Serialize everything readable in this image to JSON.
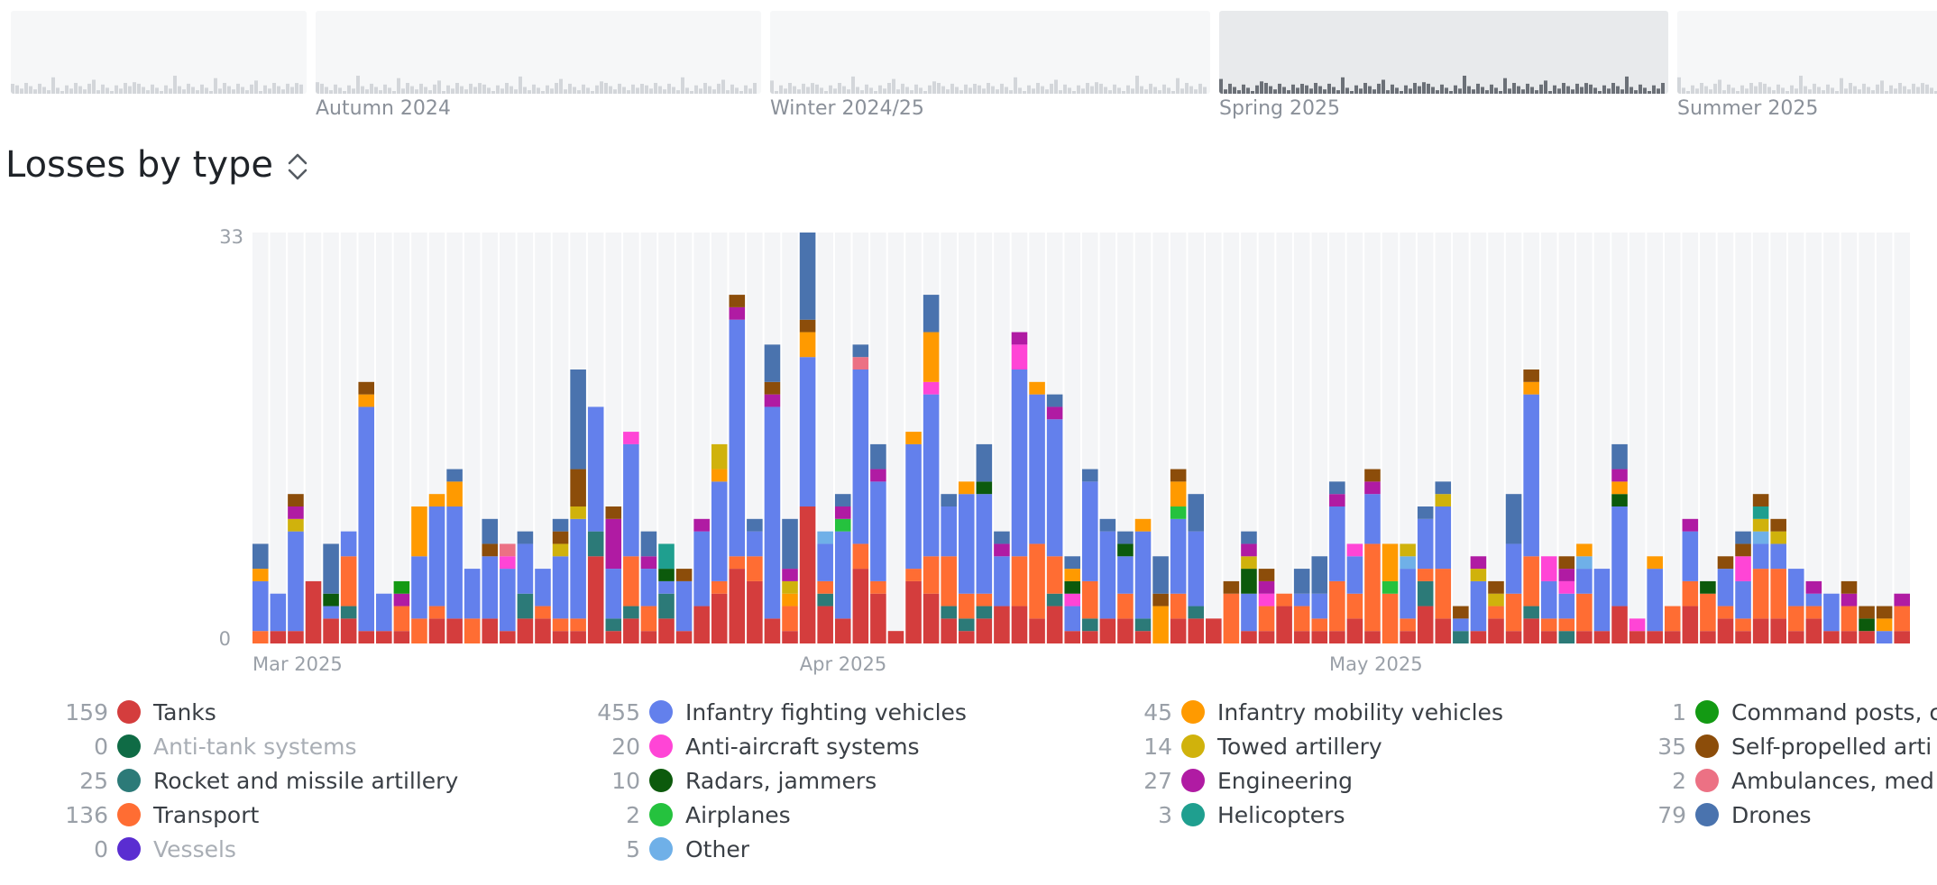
{
  "timeline": {
    "seasons": [
      {
        "label": "",
        "active": false
      },
      {
        "label": "Autumn 2024",
        "active": false
      },
      {
        "label": "Winter 2024/25",
        "active": false
      },
      {
        "label": "Spring 2025",
        "active": true
      },
      {
        "label": "Summer 2025",
        "active": false
      }
    ],
    "spark_color": "#d3d6da",
    "spark_active_color": "#6b7077"
  },
  "header": {
    "title": "Losses by type",
    "toggle_icon": "updown-chevron-icon"
  },
  "chart_data": {
    "type": "bar",
    "stacked": true,
    "ylim": [
      0,
      33
    ],
    "y_ticks": [
      "0",
      "33"
    ],
    "x_tick_labels": [
      {
        "label": "Mar 2025",
        "index": 0
      },
      {
        "label": "Apr 2025",
        "index": 31
      },
      {
        "label": "May 2025",
        "index": 61
      }
    ],
    "series": [
      {
        "name": "Tanks",
        "color": "#d43d3d",
        "total": "159"
      },
      {
        "name": "Anti-tank systems",
        "color": "#0f6b45",
        "total": "0"
      },
      {
        "name": "Rocket and missile artillery",
        "color": "#2c7a78",
        "total": "25"
      },
      {
        "name": "Transport",
        "color": "#ff6d33",
        "total": "136"
      },
      {
        "name": "Vessels",
        "color": "#5a2dd1",
        "total": "0"
      },
      {
        "name": "Infantry fighting vehicles",
        "color": "#6380ec",
        "total": "455"
      },
      {
        "name": "Anti-aircraft systems",
        "color": "#ff45d6",
        "total": "20"
      },
      {
        "name": "Radars, jammers",
        "color": "#0c5a0c",
        "total": "10"
      },
      {
        "name": "Airplanes",
        "color": "#25c23e",
        "total": "2"
      },
      {
        "name": "Other",
        "color": "#6fb0e8",
        "total": "5"
      },
      {
        "name": "Infantry mobility vehicles",
        "color": "#ff9a00",
        "total": "45"
      },
      {
        "name": "Towed artillery",
        "color": "#d0b20c",
        "total": "14"
      },
      {
        "name": "Engineering",
        "color": "#b01ba3",
        "total": "27"
      },
      {
        "name": "Helicopters",
        "color": "#1f9f8f",
        "total": "3"
      },
      {
        "name": "Command posts, c",
        "color": "#139a13",
        "total": "1"
      },
      {
        "name": "Self-propelled arti",
        "color": "#8c4d0a",
        "total": "35"
      },
      {
        "name": "Ambulances, med",
        "color": "#ec7184",
        "total": "2"
      },
      {
        "name": "Drones",
        "color": "#4a73ae",
        "total": "79"
      }
    ],
    "days": [
      {
        "Tanks": 0,
        "Infantry fighting vehicles": 4,
        "Infantry mobility vehicles": 1,
        "Transport": 1,
        "Drones": 2
      },
      {
        "Tanks": 1,
        "Infantry fighting vehicles": 3
      },
      {
        "Tanks": 1,
        "Infantry fighting vehicles": 8,
        "Towed artillery": 1,
        "Self-propelled arti": 1,
        "Engineering": 1
      },
      {
        "Tanks": 5,
        "Infantry fighting vehicles": 0
      },
      {
        "Tanks": 2,
        "Infantry fighting vehicles": 1,
        "Radars, jammers": 1,
        "Drones": 4
      },
      {
        "Tanks": 2,
        "Infantry fighting vehicles": 2,
        "Rocket and missile artillery": 1,
        "Transport": 4
      },
      {
        "Tanks": 1,
        "Infantry fighting vehicles": 18,
        "Infantry mobility vehicles": 1,
        "Self-propelled arti": 1
      },
      {
        "Tanks": 1,
        "Infantry fighting vehicles": 3
      },
      {
        "Tanks": 1,
        "Command posts, c": 1,
        "Engineering": 1,
        "Transport": 2
      },
      {
        "Tanks": 0,
        "Infantry fighting vehicles": 5,
        "Infantry mobility vehicles": 4,
        "Transport": 2
      },
      {
        "Tanks": 2,
        "Infantry fighting vehicles": 8,
        "Infantry mobility vehicles": 1,
        "Transport": 1
      },
      {
        "Tanks": 2,
        "Infantry fighting vehicles": 9,
        "Infantry mobility vehicles": 2,
        "Drones": 1
      },
      {
        "Tanks": 0,
        "Infantry fighting vehicles": 4,
        "Transport": 2
      },
      {
        "Tanks": 2,
        "Infantry fighting vehicles": 5,
        "Self-propelled arti": 1,
        "Drones": 2
      },
      {
        "Tanks": 1,
        "Infantry fighting vehicles": 5,
        "Anti-aircraft systems": 1,
        "Ambulances, med": 1
      },
      {
        "Tanks": 2,
        "Infantry fighting vehicles": 4,
        "Rocket and missile artillery": 2,
        "Drones": 1
      },
      {
        "Tanks": 2,
        "Infantry fighting vehicles": 3,
        "Transport": 1
      },
      {
        "Tanks": 1,
        "Infantry fighting vehicles": 5,
        "Towed artillery": 1,
        "Self-propelled arti": 1,
        "Transport": 1,
        "Drones": 1
      },
      {
        "Tanks": 1,
        "Infantry fighting vehicles": 8,
        "Towed artillery": 1,
        "Self-propelled arti": 3,
        "Transport": 1,
        "Drones": 8
      },
      {
        "Tanks": 7,
        "Infantry fighting vehicles": 10,
        "Rocket and missile artillery": 2
      },
      {
        "Tanks": 1,
        "Infantry fighting vehicles": 4,
        "Self-propelled arti": 1,
        "Rocket and missile artillery": 1,
        "Engineering": 4
      },
      {
        "Tanks": 2,
        "Infantry fighting vehicles": 9,
        "Anti-aircraft systems": 1,
        "Rocket and missile artillery": 1,
        "Transport": 4
      },
      {
        "Tanks": 1,
        "Infantry fighting vehicles": 3,
        "Engineering": 1,
        "Transport": 2,
        "Drones": 2
      },
      {
        "Tanks": 2,
        "Infantry fighting vehicles": 1,
        "Rocket and missile artillery": 2,
        "Radars, jammers": 1,
        "Helicopters": 2
      },
      {
        "Tanks": 1,
        "Infantry fighting vehicles": 4,
        "Self-propelled arti": 1
      },
      {
        "Tanks": 3,
        "Infantry fighting vehicles": 6,
        "Engineering": 1
      },
      {
        "Tanks": 4,
        "Infantry fighting vehicles": 8,
        "Towed artillery": 2,
        "Infantry mobility vehicles": 1,
        "Transport": 1
      },
      {
        "Tanks": 6,
        "Infantry fighting vehicles": 19,
        "Self-propelled arti": 1,
        "Engineering": 1,
        "Transport": 1
      },
      {
        "Tanks": 5,
        "Infantry fighting vehicles": 2,
        "Transport": 2,
        "Drones": 1
      },
      {
        "Tanks": 2,
        "Infantry fighting vehicles": 17,
        "Self-propelled arti": 1,
        "Engineering": 1,
        "Drones": 3
      },
      {
        "Tanks": 1,
        "Infantry fighting vehicles": 0,
        "Towed artillery": 1,
        "Infantry mobility vehicles": 1,
        "Transport": 2,
        "Engineering": 1,
        "Drones": 4
      },
      {
        "Tanks": 11,
        "Infantry fighting vehicles": 12,
        "Infantry mobility vehicles": 2,
        "Self-propelled arti": 1,
        "Drones": 7
      },
      {
        "Tanks": 3,
        "Infantry fighting vehicles": 3,
        "Rocket and missile artillery": 1,
        "Transport": 1,
        "Other": 1
      },
      {
        "Tanks": 2,
        "Infantry fighting vehicles": 7,
        "Engineering": 1,
        "Airplanes": 1,
        "Drones": 1
      },
      {
        "Tanks": 6,
        "Infantry fighting vehicles": 14,
        "Ambulances, med": 1,
        "Transport": 2,
        "Drones": 1
      },
      {
        "Tanks": 4,
        "Infantry fighting vehicles": 8,
        "Engineering": 1,
        "Transport": 1,
        "Drones": 2
      },
      {
        "Tanks": 1
      },
      {
        "Tanks": 5,
        "Infantry fighting vehicles": 10,
        "Infantry mobility vehicles": 1,
        "Transport": 1
      },
      {
        "Tanks": 4,
        "Infantry fighting vehicles": 13,
        "Infantry mobility vehicles": 4,
        "Anti-aircraft systems": 1,
        "Transport": 3,
        "Drones": 3
      },
      {
        "Tanks": 2,
        "Infantry fighting vehicles": 4,
        "Rocket and missile artillery": 1,
        "Transport": 4,
        "Drones": 1
      },
      {
        "Tanks": 1,
        "Infantry fighting vehicles": 8,
        "Infantry mobility vehicles": 1,
        "Rocket and missile artillery": 1,
        "Transport": 2
      },
      {
        "Tanks": 2,
        "Infantry fighting vehicles": 8,
        "Rocket and missile artillery": 1,
        "Radars, jammers": 1,
        "Transport": 1,
        "Drones": 3
      },
      {
        "Tanks": 3,
        "Infantry fighting vehicles": 4,
        "Engineering": 1,
        "Drones": 1
      },
      {
        "Tanks": 3,
        "Infantry fighting vehicles": 15,
        "Anti-aircraft systems": 2,
        "Engineering": 1,
        "Transport": 4
      },
      {
        "Tanks": 2,
        "Infantry fighting vehicles": 12,
        "Infantry mobility vehicles": 1,
        "Transport": 6
      },
      {
        "Tanks": 3,
        "Infantry fighting vehicles": 11,
        "Engineering": 1,
        "Rocket and missile artillery": 1,
        "Transport": 3,
        "Drones": 1
      },
      {
        "Tanks": 1,
        "Infantry fighting vehicles": 2,
        "Infantry mobility vehicles": 1,
        "Radars, jammers": 1,
        "Anti-aircraft systems": 1,
        "Drones": 1
      },
      {
        "Tanks": 1,
        "Infantry fighting vehicles": 8,
        "Rocket and missile artillery": 1,
        "Transport": 3,
        "Drones": 1
      },
      {
        "Tanks": 2,
        "Infantry fighting vehicles": 7,
        "Drones": 1
      },
      {
        "Tanks": 2,
        "Infantry fighting vehicles": 3,
        "Radars, jammers": 1,
        "Transport": 2,
        "Drones": 1
      },
      {
        "Tanks": 1,
        "Infantry fighting vehicles": 7,
        "Infantry mobility vehicles": 1,
        "Rocket and missile artillery": 1
      },
      {
        "Tanks": 0,
        "Infantry fighting vehicles": 0,
        "Infantry mobility vehicles": 3,
        "Self-propelled arti": 1,
        "Drones": 3
      },
      {
        "Tanks": 2,
        "Infantry fighting vehicles": 6,
        "Infantry mobility vehicles": 2,
        "Self-propelled arti": 1,
        "Airplanes": 1,
        "Transport": 2
      },
      {
        "Tanks": 2,
        "Infantry fighting vehicles": 6,
        "Rocket and missile artillery": 1,
        "Drones": 3
      },
      {
        "Tanks": 2,
        "Infantry fighting vehicles": 0
      },
      {
        "Self-propelled arti": 1,
        "Transport": 4
      },
      {
        "Tanks": 1,
        "Infantry fighting vehicles": 3,
        "Towed artillery": 1,
        "Radars, jammers": 2,
        "Engineering": 1,
        "Drones": 1
      },
      {
        "Tanks": 1,
        "Infantry fighting vehicles": 0,
        "Anti-aircraft systems": 1,
        "Self-propelled arti": 1,
        "Engineering": 1,
        "Transport": 2
      },
      {
        "Tanks": 3,
        "Infantry fighting vehicles": 0,
        "Transport": 1
      },
      {
        "Tanks": 1,
        "Infantry fighting vehicles": 1,
        "Transport": 2,
        "Drones": 2
      },
      {
        "Tanks": 1,
        "Infantry fighting vehicles": 2,
        "Transport": 1,
        "Drones": 3
      },
      {
        "Tanks": 1,
        "Infantry fighting vehicles": 6,
        "Engineering": 1,
        "Transport": 4,
        "Drones": 1
      },
      {
        "Tanks": 2,
        "Infantry fighting vehicles": 3,
        "Anti-aircraft systems": 1,
        "Transport": 2
      },
      {
        "Tanks": 1,
        "Infantry fighting vehicles": 4,
        "Engineering": 1,
        "Self-propelled arti": 1,
        "Transport": 7
      },
      {
        "Infantry mobility vehicles": 3,
        "Transport": 4,
        "Airplanes": 1
      },
      {
        "Tanks": 1,
        "Infantry fighting vehicles": 4,
        "Towed artillery": 1,
        "Transport": 1,
        "Other": 1
      },
      {
        "Tanks": 3,
        "Infantry fighting vehicles": 4,
        "Rocket and missile artillery": 2,
        "Transport": 1,
        "Drones": 1
      },
      {
        "Tanks": 2,
        "Infantry fighting vehicles": 5,
        "Towed artillery": 1,
        "Transport": 4,
        "Drones": 1
      },
      {
        "Tanks": 0,
        "Infantry fighting vehicles": 1,
        "Self-propelled arti": 1,
        "Rocket and missile artillery": 1
      },
      {
        "Tanks": 1,
        "Infantry fighting vehicles": 4,
        "Engineering": 1,
        "Towed artillery": 1
      },
      {
        "Tanks": 2,
        "Infantry fighting vehicles": 0,
        "Self-propelled arti": 1,
        "Towed artillery": 1,
        "Transport": 1
      },
      {
        "Tanks": 1,
        "Infantry fighting vehicles": 4,
        "Transport": 3,
        "Drones": 4
      },
      {
        "Tanks": 2,
        "Infantry fighting vehicles": 13,
        "Infantry mobility vehicles": 1,
        "Self-propelled arti": 1,
        "Rocket and missile artillery": 1,
        "Transport": 4
      },
      {
        "Tanks": 1,
        "Infantry fighting vehicles": 3,
        "Anti-aircraft systems": 2,
        "Transport": 1
      },
      {
        "Tanks": 0,
        "Infantry fighting vehicles": 2,
        "Self-propelled arti": 1,
        "Engineering": 1,
        "Anti-aircraft systems": 1,
        "Rocket and missile artillery": 1,
        "Transport": 1
      },
      {
        "Tanks": 1,
        "Infantry fighting vehicles": 2,
        "Infantry mobility vehicles": 1,
        "Transport": 3,
        "Other": 1
      },
      {
        "Tanks": 1,
        "Infantry fighting vehicles": 5
      },
      {
        "Tanks": 3,
        "Infantry fighting vehicles": 8,
        "Engineering": 1,
        "Radars, jammers": 1,
        "Infantry mobility vehicles": 1,
        "Drones": 2
      },
      {
        "Tanks": 1,
        "Anti-aircraft systems": 1,
        "Infantry fighting vehicles": 0
      },
      {
        "Tanks": 1,
        "Infantry fighting vehicles": 5,
        "Infantry mobility vehicles": 1
      },
      {
        "Tanks": 1,
        "Infantry fighting vehicles": 0,
        "Transport": 2
      },
      {
        "Tanks": 3,
        "Infantry fighting vehicles": 4,
        "Engineering": 1,
        "Transport": 2
      },
      {
        "Tanks": 1,
        "Radars, jammers": 1,
        "Transport": 3
      },
      {
        "Tanks": 2,
        "Infantry fighting vehicles": 3,
        "Self-propelled arti": 1,
        "Transport": 1
      },
      {
        "Tanks": 1,
        "Infantry fighting vehicles": 3,
        "Anti-aircraft systems": 2,
        "Self-propelled arti": 1,
        "Transport": 1,
        "Drones": 1
      },
      {
        "Tanks": 2,
        "Infantry fighting vehicles": 2,
        "Towed artillery": 1,
        "Self-propelled arti": 1,
        "Helicopters": 1,
        "Transport": 4,
        "Other": 1
      },
      {
        "Tanks": 2,
        "Infantry fighting vehicles": 2,
        "Towed artillery": 1,
        "Self-propelled arti": 1,
        "Transport": 4
      },
      {
        "Tanks": 1,
        "Infantry fighting vehicles": 3,
        "Transport": 2
      },
      {
        "Tanks": 2,
        "Infantry fighting vehicles": 1,
        "Engineering": 1,
        "Transport": 1
      },
      {
        "Tanks": 1,
        "Infantry fighting vehicles": 3
      },
      {
        "Tanks": 1,
        "Infantry fighting vehicles": 0,
        "Self-propelled arti": 1,
        "Engineering": 1,
        "Transport": 2
      },
      {
        "Tanks": 1,
        "Radars, jammers": 1,
        "Self-propelled arti": 1
      },
      {
        "Infantry fighting vehicles": 1,
        "Infantry mobility vehicles": 1,
        "Self-propelled arti": 1
      },
      {
        "Tanks": 1,
        "Infantry fighting vehicles": 0,
        "Engineering": 1,
        "Transport": 2
      }
    ]
  },
  "legend": {
    "columns": [
      [
        {
          "series": "Tanks",
          "muted": false
        },
        {
          "series": "Anti-tank systems",
          "muted": true
        },
        {
          "series": "Rocket and missile artillery",
          "muted": false
        },
        {
          "series": "Transport",
          "muted": false
        },
        {
          "series": "Vessels",
          "muted": true
        }
      ],
      [
        {
          "series": "Infantry fighting vehicles",
          "muted": false
        },
        {
          "series": "Anti-aircraft systems",
          "muted": false
        },
        {
          "series": "Radars, jammers",
          "muted": false
        },
        {
          "series": "Airplanes",
          "muted": false
        },
        {
          "series": "Other",
          "muted": false
        }
      ],
      [
        {
          "series": "Infantry mobility vehicles",
          "muted": false
        },
        {
          "series": "Towed artillery",
          "muted": false
        },
        {
          "series": "Engineering",
          "muted": false
        },
        {
          "series": "Helicopters",
          "muted": false
        }
      ],
      [
        {
          "series": "Command posts, c",
          "muted": false
        },
        {
          "series": "Self-propelled arti",
          "muted": false
        },
        {
          "series": "Ambulances, med",
          "muted": false
        },
        {
          "series": "Drones",
          "muted": false
        }
      ]
    ]
  }
}
